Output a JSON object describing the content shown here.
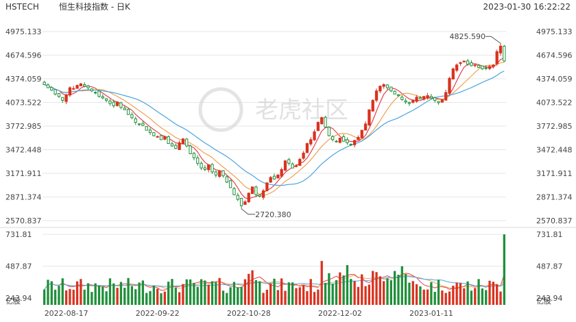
{
  "header": {
    "symbol": "HSTECH",
    "name": "恒生科技指数 - 日K",
    "datetime": "2023-01-30 16:22:22"
  },
  "watermark": "老虎社区",
  "colors": {
    "up": "#d9321f",
    "down": "#1f8f3a",
    "ma_fast": "#e0404a",
    "ma_mid": "#f0a050",
    "ma_slow": "#4aa3e0",
    "grid": "#e6e6e6"
  },
  "chart_data": {
    "type": "candlestick",
    "price_ticks": [
      "4975.133",
      "4674.596",
      "4374.059",
      "4073.522",
      "3772.985",
      "3472.448",
      "3171.911",
      "2871.374",
      "2570.837"
    ],
    "price_range": [
      2570.837,
      4975.133
    ],
    "volume_ticks": [
      "731.81",
      "487.87",
      "243.94"
    ],
    "volume_unit": "亿股",
    "volume_range": [
      0,
      731.81
    ],
    "x_labels": [
      "2022-08-17",
      "2022-09-22",
      "2022-10-28",
      "2022-12-02",
      "2023-01-11"
    ],
    "annotations": {
      "high": "4825.590",
      "low": "2720.380"
    },
    "close": [
      4300,
      4260,
      4230,
      4180,
      4150,
      4100,
      4170,
      4260,
      4250,
      4290,
      4310,
      4280,
      4260,
      4220,
      4200,
      4150,
      4130,
      4100,
      4060,
      4030,
      4080,
      4010,
      3980,
      3920,
      3880,
      3820,
      3800,
      3780,
      3720,
      3690,
      3650,
      3640,
      3600,
      3640,
      3550,
      3520,
      3490,
      3560,
      3610,
      3520,
      3420,
      3370,
      3300,
      3240,
      3220,
      3280,
      3190,
      3150,
      3200,
      3140,
      3060,
      2990,
      2900,
      2840,
      2760,
      2810,
      2920,
      3000,
      2900,
      2880,
      2950,
      3050,
      3120,
      3100,
      3150,
      3220,
      3330,
      3300,
      3240,
      3270,
      3350,
      3430,
      3550,
      3600,
      3700,
      3820,
      3880,
      3760,
      3650,
      3600,
      3580,
      3620,
      3580,
      3560,
      3540,
      3590,
      3630,
      3720,
      3800,
      3980,
      4100,
      4220,
      4280,
      4300,
      4260,
      4220,
      4180,
      4160,
      4110,
      4080,
      4060,
      4100,
      4140,
      4120,
      4150,
      4160,
      4130,
      4100,
      4070,
      4110,
      4200,
      4380,
      4500,
      4550,
      4580,
      4600,
      4560,
      4540,
      4550,
      4520,
      4500,
      4510,
      4530,
      4550,
      4720,
      4790,
      4600
    ]
  }
}
